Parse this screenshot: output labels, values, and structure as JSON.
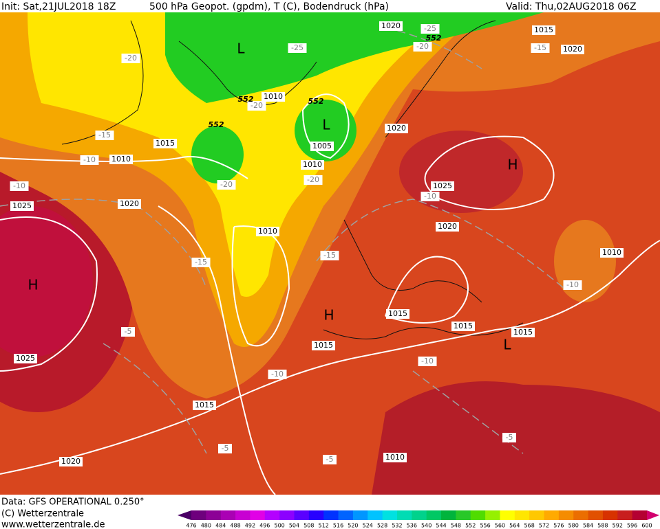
{
  "header": {
    "init": "Init: Sat,21JUL2018 18Z",
    "title": "500 hPa Geopot. (gpdm), T (C), Bodendruck (hPa)",
    "valid": "Valid: Thu,02AUG2018 06Z"
  },
  "footer": {
    "data": "Data: GFS OPERATIONAL 0.250°",
    "copyright": "(C) Wetterzentrale",
    "url": "www.wetterzentrale.de"
  },
  "colorbar": {
    "levels": [
      476,
      480,
      484,
      488,
      492,
      496,
      500,
      504,
      508,
      512,
      516,
      520,
      524,
      528,
      532,
      536,
      540,
      544,
      548,
      552,
      556,
      560,
      564,
      568,
      572,
      576,
      580,
      584,
      588,
      592,
      596,
      600
    ],
    "colors": [
      "#4b0066",
      "#6e007d",
      "#8c0096",
      "#aa00b4",
      "#c800d2",
      "#e100e6",
      "#b400ff",
      "#8c00ff",
      "#5a00ff",
      "#2800ff",
      "#0032ff",
      "#0064ff",
      "#0096ff",
      "#00c3ff",
      "#00e1e1",
      "#00dcb4",
      "#00d28c",
      "#00c864",
      "#00b43c",
      "#28c828",
      "#50dc00",
      "#96f000",
      "#ffff00",
      "#ffe600",
      "#ffc800",
      "#ffaa00",
      "#f58c00",
      "#eb6e00",
      "#e15000",
      "#d73200",
      "#c81e1e",
      "#b40032",
      "#d2006e"
    ]
  },
  "pressure_centers": [
    "L",
    "L",
    "H",
    "H",
    "H",
    "L"
  ],
  "isobar_labels": [
    1020,
    1015,
    1020,
    1010,
    1005,
    1010,
    1020,
    1015,
    1010,
    1020,
    1025,
    1025,
    1020,
    1010,
    1010,
    1015,
    1015,
    1015,
    1015,
    1025,
    1015,
    1020,
    1010
  ],
  "temperature_labels": [
    -25,
    -20,
    -25,
    -20,
    -15,
    -20,
    -15,
    -10,
    -10,
    -20,
    -20,
    -10,
    -15,
    -15,
    -10,
    -5,
    -10,
    -10,
    -5,
    -5,
    -5
  ],
  "geopotential_labels": [
    552,
    552,
    552,
    552
  ]
}
